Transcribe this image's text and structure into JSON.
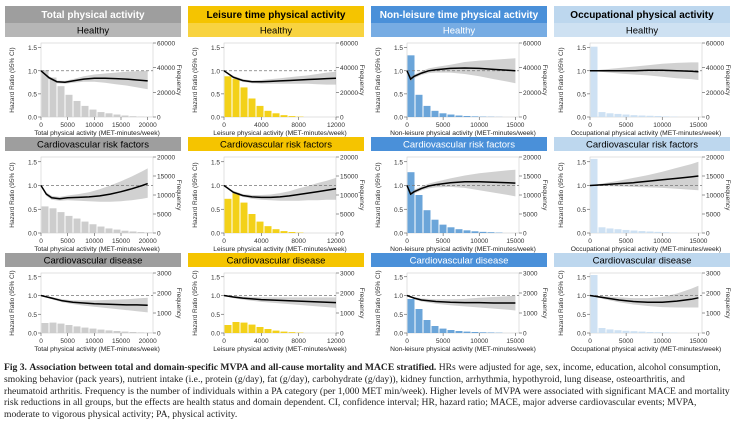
{
  "columns": [
    {
      "title": "Total physical activity",
      "color": "#9e9e9e",
      "title_color": "#ffffff",
      "fill": "#c8c8c8"
    },
    {
      "title": "Leisure time physical activity",
      "color": "#f5c400",
      "title_color": "#000000",
      "fill": "#f2cc00"
    },
    {
      "title": "Non-leisure time physical activity",
      "color": "#4a90d9",
      "title_color": "#ffffff",
      "fill": "#5b9bd5"
    },
    {
      "title": "Occupational physical activity",
      "color": "#bdd7ee",
      "title_color": "#000000",
      "fill": "#c9def2"
    }
  ],
  "rows": [
    {
      "label": "Healthy",
      "freq_ticks": [
        "0",
        "20000",
        "40000",
        "60000"
      ]
    },
    {
      "label": "Cardiovascular risk factors",
      "freq_ticks": [
        "0",
        "5000",
        "10000",
        "15000",
        "20000"
      ]
    },
    {
      "label": "Cardiovascular disease",
      "freq_ticks": [
        "0",
        "1000",
        "2000",
        "3000"
      ]
    }
  ],
  "axes": {
    "ylabel": "Hazard Ratio (95% CI)",
    "y2label": "Frequency",
    "hr_ticks": [
      "0.0",
      "0.5",
      "1.0",
      "1.5"
    ],
    "xlabels": [
      "Total physical activity (MET-minutes/week)",
      "Leisure physical activity (MET-minutes/week)",
      "Non-leisure physical activity (MET-minutes/week)",
      "Occupational physical activity (MET-minutes/week)"
    ],
    "xticks": [
      [
        "0",
        "5000",
        "10000",
        "15000",
        "20000"
      ],
      [
        "0",
        "4000",
        "8000",
        "12000"
      ],
      [
        "0",
        "5000",
        "10000",
        "15000"
      ],
      [
        "0",
        "5000",
        "10000",
        "15000"
      ]
    ]
  },
  "chart_data": [
    {
      "type": "line",
      "title": "Total physical activity — Healthy",
      "xlim": [
        0,
        21000
      ],
      "ylim": [
        0,
        1.6
      ],
      "freq_max": 60000,
      "x": [
        0,
        1500,
        3000,
        4500,
        6000,
        8000,
        10000,
        12000,
        14000,
        16000,
        18000,
        20000
      ],
      "hr": [
        1.0,
        0.85,
        0.76,
        0.75,
        0.78,
        0.82,
        0.84,
        0.84,
        0.83,
        0.82,
        0.8,
        0.78
      ],
      "ci_low": [
        1.0,
        0.82,
        0.73,
        0.72,
        0.74,
        0.76,
        0.76,
        0.74,
        0.71,
        0.68,
        0.64,
        0.6
      ],
      "ci_high": [
        1.0,
        0.88,
        0.79,
        0.78,
        0.82,
        0.88,
        0.92,
        0.94,
        0.96,
        0.98,
        0.99,
        1.0
      ],
      "freq": [
        38000,
        32000,
        25000,
        18000,
        13000,
        9000,
        6000,
        4000,
        3000,
        2000,
        1200,
        600,
        300,
        150
      ]
    },
    {
      "type": "line",
      "title": "Leisure time physical activity — Healthy",
      "xlim": [
        0,
        12000
      ],
      "ylim": [
        0,
        1.6
      ],
      "freq_max": 60000,
      "x": [
        0,
        1000,
        2000,
        3000,
        4000,
        5000,
        6000,
        7000,
        8000,
        9000,
        10000,
        11000,
        12000
      ],
      "hr": [
        1.0,
        0.86,
        0.79,
        0.76,
        0.76,
        0.77,
        0.78,
        0.79,
        0.8,
        0.81,
        0.82,
        0.83,
        0.84
      ],
      "ci_low": [
        1.0,
        0.83,
        0.76,
        0.73,
        0.72,
        0.72,
        0.72,
        0.72,
        0.72,
        0.72,
        0.71,
        0.7,
        0.7
      ],
      "ci_high": [
        1.0,
        0.89,
        0.82,
        0.79,
        0.8,
        0.82,
        0.84,
        0.86,
        0.88,
        0.9,
        0.93,
        0.96,
        0.98
      ],
      "freq": [
        33000,
        31000,
        24000,
        15000,
        9000,
        5000,
        3000,
        1500,
        700,
        300
      ]
    },
    {
      "type": "line",
      "title": "Non-leisure time physical activity — Healthy",
      "xlim": [
        0,
        15500
      ],
      "ylim": [
        0,
        1.6
      ],
      "freq_max": 60000,
      "x": [
        0,
        500,
        1000,
        2000,
        3000,
        4000,
        6000,
        8000,
        10000,
        12000,
        14000,
        15000
      ],
      "hr": [
        1.0,
        0.82,
        0.88,
        0.95,
        1.0,
        1.02,
        1.05,
        1.06,
        1.05,
        1.03,
        1.01,
        1.0
      ],
      "ci_low": [
        1.0,
        0.76,
        0.84,
        0.91,
        0.95,
        0.96,
        0.96,
        0.93,
        0.88,
        0.82,
        0.76,
        0.73
      ],
      "ci_high": [
        1.0,
        0.88,
        0.92,
        0.99,
        1.05,
        1.08,
        1.13,
        1.19,
        1.22,
        1.24,
        1.26,
        1.27
      ],
      "freq": [
        50000,
        18000,
        9000,
        5000,
        3000,
        2000,
        1200,
        800,
        500,
        300,
        200,
        100
      ]
    },
    {
      "type": "line",
      "title": "Occupational physical activity — Healthy",
      "xlim": [
        0,
        15500
      ],
      "ylim": [
        0,
        1.6
      ],
      "freq_max": 60000,
      "x": [
        0,
        2000,
        4000,
        6000,
        8000,
        10000,
        12000,
        14000,
        15000
      ],
      "hr": [
        1.0,
        1.0,
        1.0,
        1.0,
        1.01,
        1.01,
        1.0,
        0.99,
        0.98
      ],
      "ci_low": [
        1.0,
        0.97,
        0.94,
        0.92,
        0.9,
        0.87,
        0.84,
        0.82,
        0.8
      ],
      "ci_high": [
        1.0,
        1.03,
        1.06,
        1.09,
        1.12,
        1.15,
        1.17,
        1.18,
        1.18
      ],
      "freq": [
        57000,
        4000,
        3000,
        2500,
        2000,
        1500,
        1200,
        1000,
        800,
        500,
        300
      ]
    },
    {
      "type": "line",
      "title": "Total physical activity — Cardiovascular risk factors",
      "xlim": [
        0,
        21000
      ],
      "ylim": [
        0,
        1.6
      ],
      "freq_max": 20000,
      "x": [
        0,
        1000,
        2000,
        3500,
        5000,
        7000,
        9000,
        11000,
        13000,
        15000,
        17000,
        19000,
        20000
      ],
      "hr": [
        1.0,
        0.82,
        0.74,
        0.72,
        0.74,
        0.75,
        0.76,
        0.78,
        0.82,
        0.87,
        0.93,
        1.0,
        1.04
      ],
      "ci_low": [
        1.0,
        0.78,
        0.7,
        0.68,
        0.69,
        0.68,
        0.67,
        0.66,
        0.66,
        0.67,
        0.69,
        0.72,
        0.74
      ],
      "ci_high": [
        1.0,
        0.86,
        0.78,
        0.76,
        0.79,
        0.82,
        0.86,
        0.92,
        1.0,
        1.09,
        1.19,
        1.3,
        1.36
      ],
      "freq": [
        7000,
        6500,
        5500,
        4500,
        3800,
        3000,
        2300,
        1700,
        1200,
        900,
        600,
        400,
        250,
        150
      ]
    },
    {
      "type": "line",
      "title": "Leisure time physical activity — Cardiovascular risk factors",
      "xlim": [
        0,
        12000
      ],
      "ylim": [
        0,
        1.6
      ],
      "freq_max": 20000,
      "x": [
        0,
        1000,
        2000,
        3000,
        4000,
        5000,
        6000,
        7000,
        8000,
        9000,
        10000,
        11000,
        12000
      ],
      "hr": [
        1.0,
        0.86,
        0.79,
        0.76,
        0.75,
        0.75,
        0.76,
        0.78,
        0.81,
        0.84,
        0.87,
        0.9,
        0.93
      ],
      "ci_low": [
        1.0,
        0.83,
        0.76,
        0.72,
        0.7,
        0.69,
        0.68,
        0.68,
        0.68,
        0.69,
        0.69,
        0.7,
        0.7
      ],
      "ci_high": [
        1.0,
        0.89,
        0.82,
        0.8,
        0.8,
        0.81,
        0.84,
        0.88,
        0.94,
        0.99,
        1.05,
        1.1,
        1.16
      ],
      "freq": [
        9000,
        10500,
        8000,
        5000,
        3000,
        1800,
        1000,
        500,
        250,
        100
      ]
    },
    {
      "type": "line",
      "title": "Non-leisure time physical activity — Cardiovascular risk factors",
      "xlim": [
        0,
        15500
      ],
      "ylim": [
        0,
        1.6
      ],
      "freq_max": 20000,
      "x": [
        0,
        500,
        1000,
        2000,
        3000,
        4000,
        6000,
        8000,
        10000,
        12000,
        14000,
        15000
      ],
      "hr": [
        1.0,
        0.82,
        0.87,
        0.94,
        0.99,
        1.02,
        1.06,
        1.08,
        1.08,
        1.07,
        1.06,
        1.05
      ],
      "ci_low": [
        1.0,
        0.78,
        0.83,
        0.9,
        0.94,
        0.96,
        0.97,
        0.95,
        0.9,
        0.85,
        0.8,
        0.77
      ],
      "ci_high": [
        1.0,
        0.86,
        0.91,
        0.98,
        1.04,
        1.08,
        1.15,
        1.21,
        1.26,
        1.29,
        1.32,
        1.33
      ],
      "freq": [
        16000,
        10000,
        6000,
        3500,
        2200,
        1500,
        1000,
        700,
        450,
        300,
        200,
        100
      ]
    },
    {
      "type": "line",
      "title": "Occupational physical activity — Cardiovascular risk factors",
      "xlim": [
        0,
        15500
      ],
      "ylim": [
        0,
        1.6
      ],
      "freq_max": 20000,
      "x": [
        0,
        2000,
        4000,
        6000,
        8000,
        10000,
        12000,
        14000,
        15000
      ],
      "hr": [
        1.0,
        1.02,
        1.04,
        1.06,
        1.09,
        1.12,
        1.15,
        1.18,
        1.2
      ],
      "ci_low": [
        1.0,
        0.99,
        0.98,
        0.97,
        0.96,
        0.95,
        0.93,
        0.91,
        0.9
      ],
      "ci_high": [
        1.0,
        1.05,
        1.1,
        1.16,
        1.22,
        1.29,
        1.37,
        1.45,
        1.5
      ],
      "freq": [
        19500,
        1500,
        1200,
        1000,
        800,
        650,
        500,
        400,
        300,
        200,
        100
      ]
    },
    {
      "type": "line",
      "title": "Total physical activity — Cardiovascular disease",
      "xlim": [
        0,
        21000
      ],
      "ylim": [
        0,
        1.6
      ],
      "freq_max": 3000,
      "x": [
        0,
        2000,
        4000,
        6000,
        8000,
        10000,
        12000,
        14000,
        16000,
        18000,
        20000
      ],
      "hr": [
        1.0,
        0.93,
        0.86,
        0.82,
        0.8,
        0.78,
        0.77,
        0.76,
        0.75,
        0.75,
        0.74
      ],
      "ci_low": [
        1.0,
        0.9,
        0.82,
        0.77,
        0.73,
        0.7,
        0.67,
        0.64,
        0.61,
        0.58,
        0.55
      ],
      "ci_high": [
        1.0,
        0.96,
        0.9,
        0.87,
        0.87,
        0.87,
        0.88,
        0.89,
        0.9,
        0.92,
        0.94
      ],
      "freq": [
        500,
        520,
        470,
        400,
        330,
        270,
        220,
        170,
        130,
        100,
        70,
        50,
        30,
        20
      ]
    },
    {
      "type": "line",
      "title": "Leisure time physical activity — Cardiovascular disease",
      "xlim": [
        0,
        12000
      ],
      "ylim": [
        0,
        1.6
      ],
      "freq_max": 3000,
      "x": [
        0,
        1000,
        2000,
        3000,
        4000,
        5000,
        6000,
        7000,
        8000,
        9000,
        10000,
        11000,
        12000
      ],
      "hr": [
        1.0,
        0.96,
        0.93,
        0.91,
        0.89,
        0.88,
        0.87,
        0.86,
        0.85,
        0.84,
        0.83,
        0.82,
        0.81
      ],
      "ci_low": [
        1.0,
        0.93,
        0.89,
        0.86,
        0.83,
        0.81,
        0.79,
        0.77,
        0.75,
        0.73,
        0.71,
        0.69,
        0.67
      ],
      "ci_high": [
        1.0,
        0.99,
        0.97,
        0.96,
        0.95,
        0.95,
        0.95,
        0.95,
        0.95,
        0.95,
        0.95,
        0.95,
        0.95
      ],
      "freq": [
        400,
        550,
        520,
        420,
        300,
        200,
        120,
        70,
        40,
        20
      ]
    },
    {
      "type": "line",
      "title": "Non-leisure time physical activity — Cardiovascular disease",
      "xlim": [
        0,
        15500
      ],
      "ylim": [
        0,
        1.6
      ],
      "freq_max": 3000,
      "x": [
        0,
        1000,
        2000,
        4000,
        6000,
        8000,
        10000,
        12000,
        14000,
        15000
      ],
      "hr": [
        1.0,
        0.93,
        0.88,
        0.84,
        0.82,
        0.81,
        0.81,
        0.8,
        0.8,
        0.8
      ],
      "ci_low": [
        1.0,
        0.9,
        0.84,
        0.78,
        0.74,
        0.71,
        0.68,
        0.65,
        0.62,
        0.6
      ],
      "ci_high": [
        1.0,
        0.96,
        0.92,
        0.9,
        0.9,
        0.91,
        0.94,
        0.96,
        0.98,
        1.0
      ],
      "freq": [
        1700,
        1200,
        650,
        350,
        220,
        150,
        100,
        70,
        50,
        35,
        25,
        15
      ]
    },
    {
      "type": "line",
      "title": "Occupational physical activity — Cardiovascular disease",
      "xlim": [
        0,
        15500
      ],
      "ylim": [
        0,
        1.6
      ],
      "freq_max": 3000,
      "x": [
        0,
        2000,
        4000,
        6000,
        8000,
        10000,
        12000,
        14000,
        15000
      ],
      "hr": [
        1.0,
        0.94,
        0.88,
        0.84,
        0.82,
        0.82,
        0.85,
        0.9,
        0.94
      ],
      "ci_low": [
        1.0,
        0.9,
        0.82,
        0.76,
        0.72,
        0.69,
        0.68,
        0.68,
        0.68
      ],
      "ci_high": [
        1.0,
        0.98,
        0.95,
        0.93,
        0.93,
        0.96,
        1.05,
        1.18,
        1.26
      ],
      "freq": [
        2900,
        250,
        180,
        140,
        110,
        90,
        70,
        50,
        40,
        30,
        20
      ]
    }
  ],
  "caption": {
    "label": "Fig 3.",
    "bold": "Association between total and domain-specific MVPA and all-cause mortality and MACE stratified.",
    "text": "HRs were adjusted for age, sex, income, education, alcohol consumption, smoking behavior (pack years), nutrient intake (i.e., protein (g/day), fat (g/day), carbohydrate (g/day)), kidney function, arrhythmia, hypothyroid, lung disease, osteoarthritis, and rheumatoid arthritis. Frequency is the number of individuals within a PA category (per 1,000 MET min/week). Higher levels of MVPA were associated with significant MACE and mortality risk reductions in all groups, but the effects are health status and domain dependent. CI, confidence interval; HR, hazard ratio; MACE, major adverse cardiovascular events; MVPA, moderate to vigorous physical activity; PA, physical activity."
  }
}
